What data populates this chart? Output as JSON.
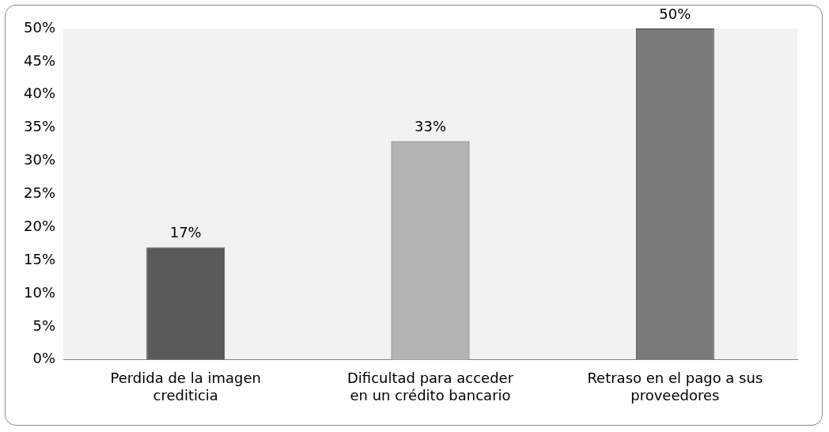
{
  "chart_data": {
    "type": "bar",
    "categories": [
      "Perdida de la imagen crediticia",
      "Dificultad para acceder en un crédito bancario",
      "Retraso en el pago a sus proveedores"
    ],
    "values": [
      17,
      33,
      50
    ],
    "colors": [
      "#5a5a5a",
      "#b4b4b4",
      "#7a7a7a"
    ],
    "value_labels": [
      "17%",
      "33%",
      "50%"
    ],
    "ylim": [
      0,
      50
    ],
    "yticks": [
      {
        "value": 0,
        "label": "0%"
      },
      {
        "value": 5,
        "label": "5%"
      },
      {
        "value": 10,
        "label": "10%"
      },
      {
        "value": 15,
        "label": "15%"
      },
      {
        "value": 20,
        "label": "20%"
      },
      {
        "value": 25,
        "label": "25%"
      },
      {
        "value": 30,
        "label": "30%"
      },
      {
        "value": 35,
        "label": "35%"
      },
      {
        "value": 40,
        "label": "40%"
      },
      {
        "value": 45,
        "label": "45%"
      },
      {
        "value": 50,
        "label": "50%"
      }
    ],
    "grid": false,
    "legend": false
  }
}
